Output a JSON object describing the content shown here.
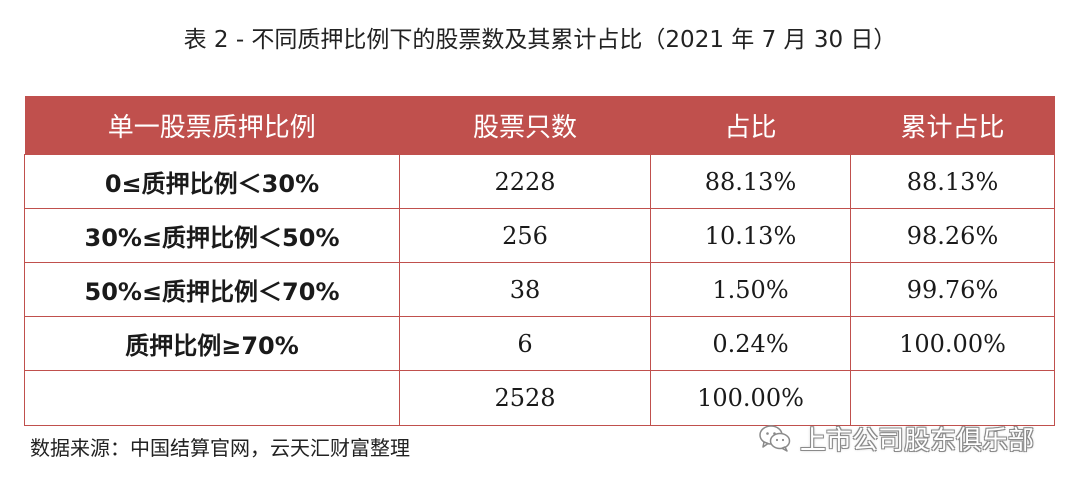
{
  "caption": "表 2 -  不同质押比例下的股票数及其累计占比（2021 年 7 月 30 日）",
  "table": {
    "headers": [
      "单一股票质押比例",
      "股票只数",
      "占比",
      "累计占比"
    ],
    "rows": [
      [
        "0≤质押比例＜30%",
        "2228",
        "88.13%",
        "88.13%"
      ],
      [
        "30%≤质押比例＜50%",
        "256",
        "10.13%",
        "98.26%"
      ],
      [
        "50%≤质押比例＜70%",
        "38",
        "1.50%",
        "99.76%"
      ],
      [
        "质押比例≥70%",
        "6",
        "0.24%",
        "100.00%"
      ],
      [
        "",
        "2528",
        "100.00%",
        ""
      ]
    ]
  },
  "source": "数据来源：中国结算官网，云天汇财富整理",
  "watermark": {
    "icon": "wechat-icon",
    "text": "上市公司股东俱乐部"
  },
  "colors": {
    "header_bg": "#c0504d",
    "header_text": "#ffffff",
    "border": "#c0504d"
  }
}
